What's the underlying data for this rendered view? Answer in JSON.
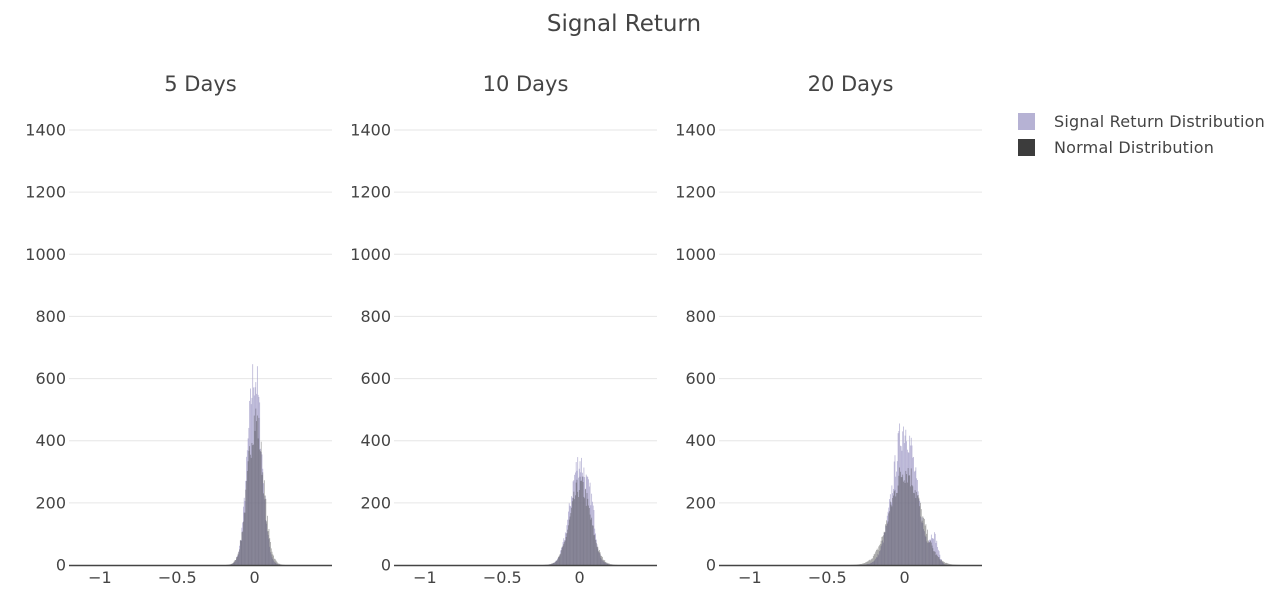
{
  "title": "Signal Return",
  "legend": {
    "items": [
      {
        "label": "Signal Return Distribution",
        "color": "#a9a4cc"
      },
      {
        "label": "Normal Distribution",
        "color": "#3c3c3c"
      }
    ]
  },
  "chart_data": [
    {
      "type": "histogram",
      "title": "5 Days",
      "xlim": [
        -1.2,
        0.5
      ],
      "ylim": [
        0,
        1400
      ],
      "xticks": [
        -1,
        -0.5,
        0
      ],
      "xtick_labels": [
        "−1",
        "−0.5",
        "0"
      ],
      "yticks": [
        0,
        200,
        400,
        600,
        800,
        1000,
        1200,
        1400
      ],
      "bin_width": 0.005,
      "series": [
        {
          "name": "Signal Return Distribution",
          "color": "#a9a4cc",
          "components": [
            {
              "mu": 0.0,
              "sigma": 0.045,
              "peak": 610
            }
          ]
        },
        {
          "name": "Normal Distribution",
          "color": "#3c3c3c",
          "components": [
            {
              "mu": 0.005,
              "sigma": 0.05,
              "peak": 470
            }
          ]
        }
      ]
    },
    {
      "type": "histogram",
      "title": "10 Days",
      "xlim": [
        -1.2,
        0.5
      ],
      "ylim": [
        0,
        1400
      ],
      "xticks": [
        -1,
        -0.5,
        0
      ],
      "xtick_labels": [
        "−1",
        "−0.5",
        "0"
      ],
      "yticks": [
        0,
        200,
        400,
        600,
        800,
        1000,
        1200,
        1400
      ],
      "bin_width": 0.005,
      "series": [
        {
          "name": "Signal Return Distribution",
          "color": "#a9a4cc",
          "components": [
            {
              "mu": 0.0,
              "sigma": 0.06,
              "peak": 330
            },
            {
              "mu": 0.08,
              "sigma": 0.02,
              "peak": 70
            }
          ]
        },
        {
          "name": "Normal Distribution",
          "color": "#3c3c3c",
          "components": [
            {
              "mu": 0.005,
              "sigma": 0.065,
              "peak": 255
            }
          ]
        }
      ]
    },
    {
      "type": "histogram",
      "title": "20 Days",
      "xlim": [
        -1.2,
        0.5
      ],
      "ylim": [
        0,
        1400
      ],
      "xticks": [
        -1,
        -0.5,
        0
      ],
      "xtick_labels": [
        "−1",
        "−0.5",
        "0"
      ],
      "yticks": [
        0,
        200,
        400,
        600,
        800,
        1000,
        1200,
        1400
      ],
      "bin_width": 0.005,
      "series": [
        {
          "name": "Signal Return Distribution",
          "color": "#a9a4cc",
          "components": [
            {
              "mu": 0.0,
              "sigma": 0.075,
              "peak": 440
            },
            {
              "mu": 0.19,
              "sigma": 0.025,
              "peak": 80
            }
          ]
        },
        {
          "name": "Normal Distribution",
          "color": "#3c3c3c",
          "components": [
            {
              "mu": 0.005,
              "sigma": 0.095,
              "peak": 305
            }
          ]
        }
      ]
    }
  ]
}
